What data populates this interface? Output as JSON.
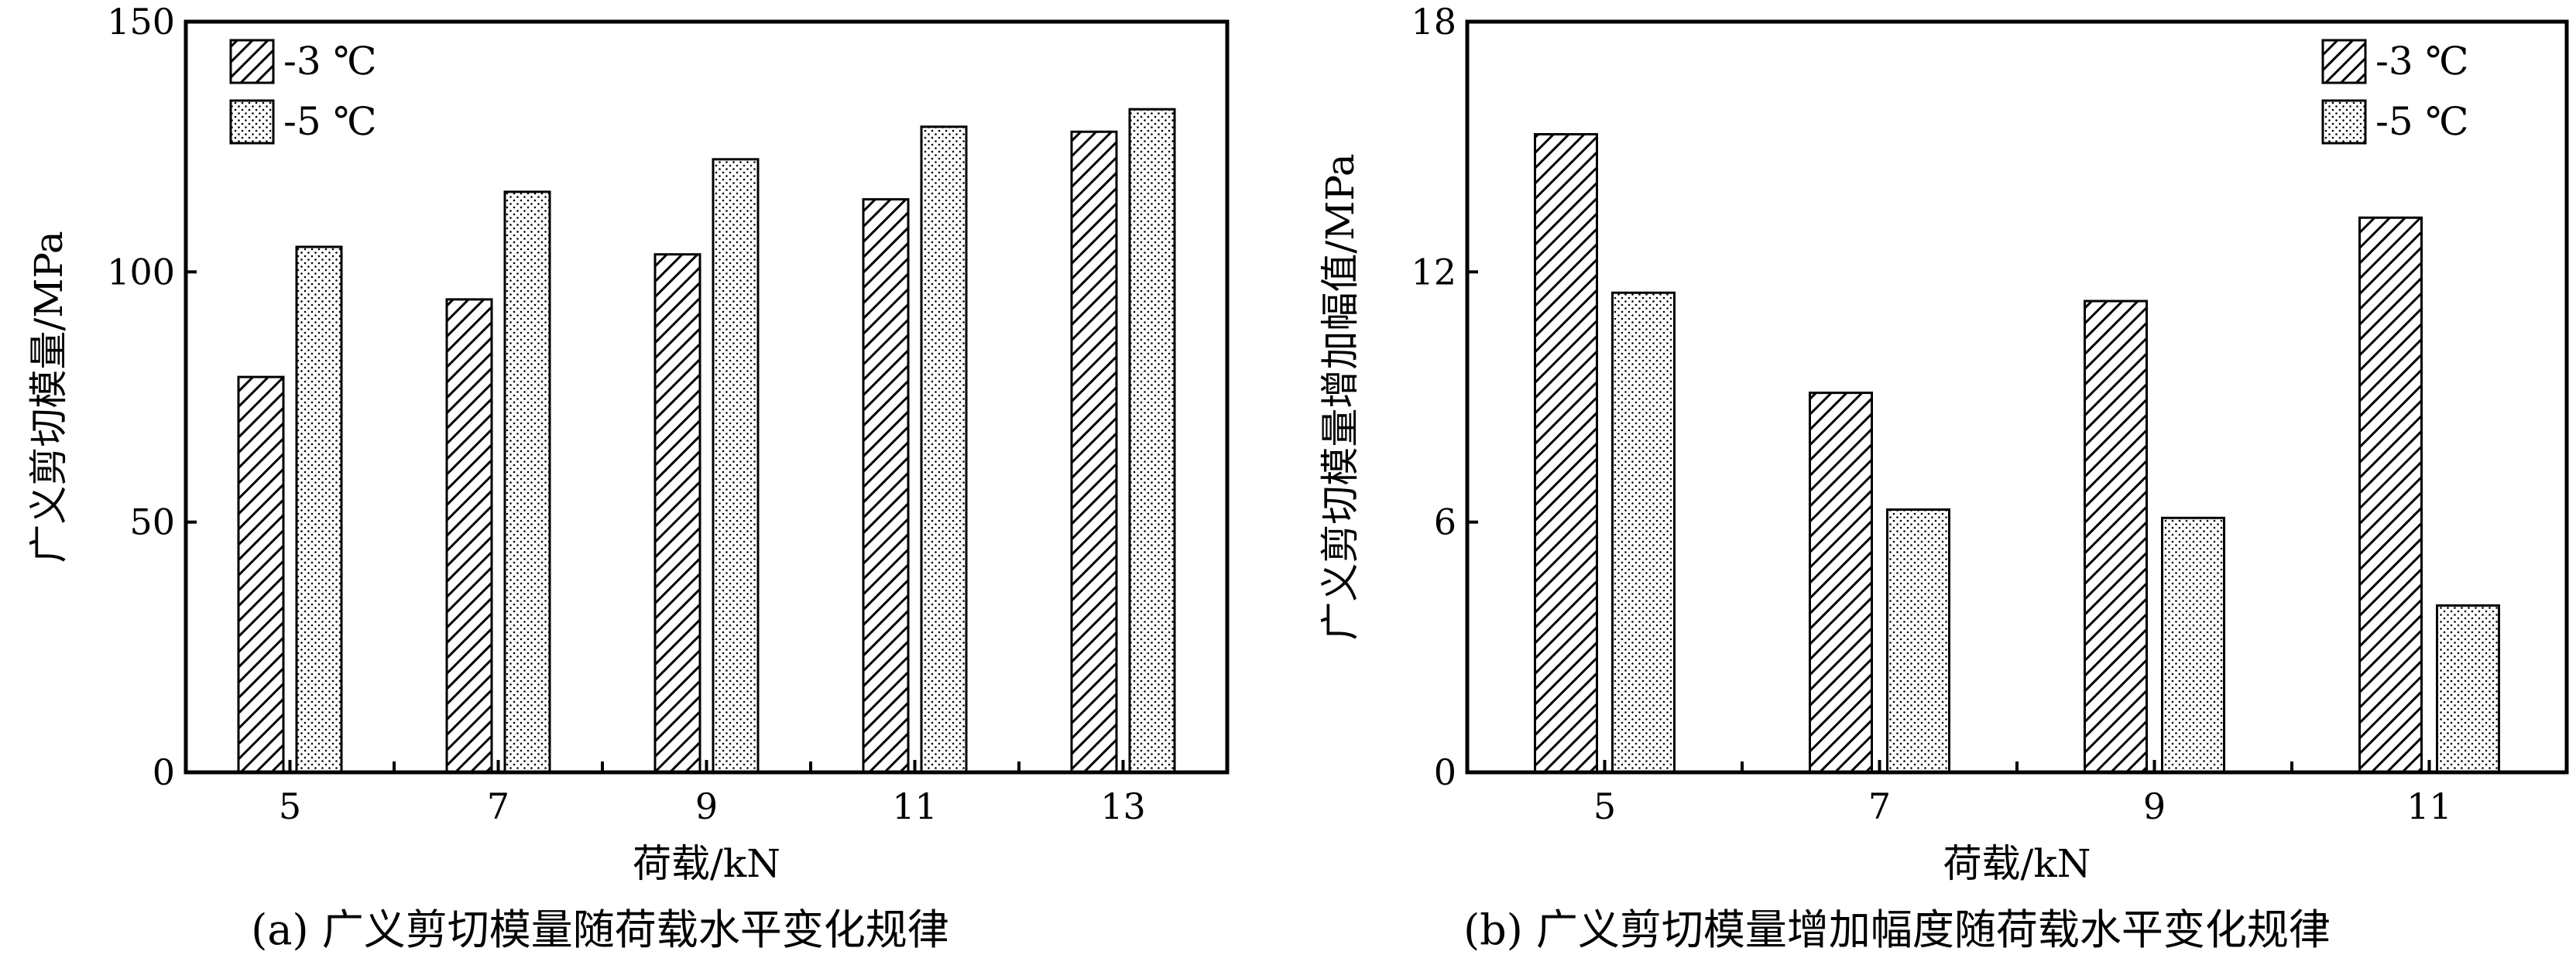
{
  "figure": {
    "caption_a": "(a) 广义剪切模量随荷载水平变化规律",
    "caption_b": "(b) 广义剪切模量增加幅度随荷载水平变化规律"
  },
  "chart_data": [
    {
      "type": "bar",
      "xlabel": "荷载/kN",
      "ylabel": "广义剪切模量/MPa",
      "categories": [
        "5",
        "7",
        "9",
        "11",
        "13"
      ],
      "ylim": [
        0,
        150
      ],
      "yticks": [
        0,
        50,
        100,
        150
      ],
      "legend_position": "top-left",
      "grid": false,
      "series": [
        {
          "name": "-3 ℃",
          "pattern": "diagonal-hatch",
          "values": [
            79,
            94.5,
            103.5,
            114.5,
            128
          ]
        },
        {
          "name": "-5 ℃",
          "pattern": "dots",
          "values": [
            105,
            116,
            122.5,
            129,
            132.5
          ]
        }
      ]
    },
    {
      "type": "bar",
      "xlabel": "荷载/kN",
      "ylabel": "广义剪切模量增加幅值/MPa",
      "categories": [
        "5",
        "7",
        "9",
        "11"
      ],
      "ylim": [
        0,
        18
      ],
      "yticks": [
        0,
        6,
        12,
        18
      ],
      "legend_position": "top-right",
      "grid": false,
      "series": [
        {
          "name": "-3 ℃",
          "pattern": "diagonal-hatch",
          "values": [
            15.3,
            9.1,
            11.3,
            13.3
          ]
        },
        {
          "name": "-5 ℃",
          "pattern": "dots",
          "values": [
            11.5,
            6.3,
            6.1,
            4.0
          ]
        }
      ]
    }
  ]
}
